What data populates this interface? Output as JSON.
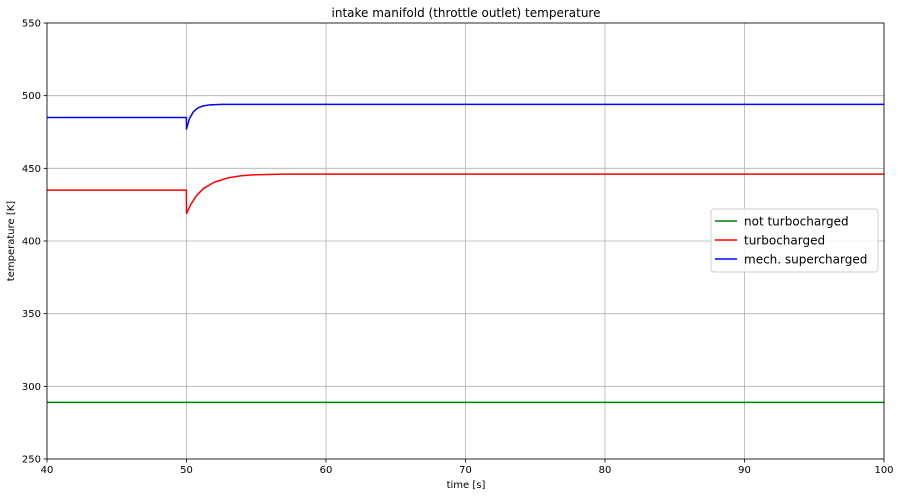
{
  "chart_data": {
    "type": "line",
    "title": "intake manifold (throttle outlet) temperature",
    "xlabel": "time [s]",
    "ylabel": "temperature [K]",
    "xlim": [
      40,
      100
    ],
    "ylim": [
      250,
      550
    ],
    "xticks": [
      40,
      50,
      60,
      70,
      80,
      90,
      100
    ],
    "yticks": [
      250,
      300,
      350,
      400,
      450,
      500,
      550
    ],
    "grid": true,
    "legend_position": "center-right",
    "series": [
      {
        "name": "not turbocharged",
        "color": "#008000",
        "x": [
          40,
          50,
          60,
          70,
          80,
          90,
          100
        ],
        "y": [
          289,
          289,
          289,
          289,
          289,
          289,
          289
        ]
      },
      {
        "name": "turbocharged",
        "color": "#ff0000",
        "x": [
          40,
          49.99,
          50,
          50.3,
          50.7,
          51.2,
          52,
          53,
          54,
          55,
          57,
          60,
          70,
          80,
          90,
          100
        ],
        "y": [
          435,
          435,
          419,
          425,
          431,
          436,
          440.5,
          443.5,
          445,
          445.6,
          446,
          446,
          446,
          446,
          446,
          446
        ]
      },
      {
        "name": "mech. supercharged",
        "color": "#0000ff",
        "x": [
          40,
          49.99,
          50,
          50.2,
          50.5,
          50.8,
          51.2,
          51.7,
          52.5,
          60,
          70,
          80,
          90,
          100
        ],
        "y": [
          485,
          485,
          477,
          484,
          489,
          491.5,
          493,
          493.7,
          494,
          494,
          494,
          494,
          494,
          494
        ]
      }
    ]
  }
}
